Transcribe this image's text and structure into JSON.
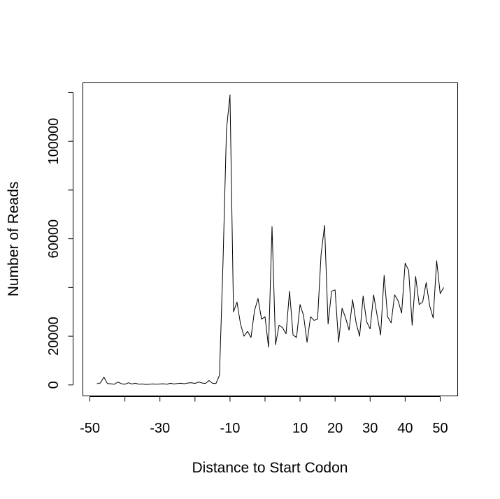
{
  "chart_data": {
    "type": "line",
    "title": "",
    "xlabel": "Distance to Start Codon",
    "ylabel": "Number of Reads",
    "xlim": [
      -52,
      55
    ],
    "ylim": [
      -4500,
      124000
    ],
    "grid": false,
    "legend": "none",
    "line_color": "#000000",
    "x_ticks": [
      -50,
      -40,
      -30,
      -20,
      -10,
      0,
      10,
      20,
      30,
      40,
      50
    ],
    "x_tick_labels": [
      {
        "value": -50,
        "label": "-50"
      },
      {
        "value": -30,
        "label": "-30"
      },
      {
        "value": -10,
        "label": "-10"
      },
      {
        "value": 10,
        "label": "10"
      },
      {
        "value": 20,
        "label": "20"
      },
      {
        "value": 30,
        "label": "30"
      },
      {
        "value": 40,
        "label": "40"
      },
      {
        "value": 50,
        "label": "50"
      }
    ],
    "y_ticks": [
      0,
      20000,
      40000,
      60000,
      80000,
      100000,
      120000
    ],
    "y_tick_labels": [
      {
        "value": 0,
        "label": "0"
      },
      {
        "value": 20000,
        "label": "20000"
      },
      {
        "value": 60000,
        "label": "60000"
      },
      {
        "value": 100000,
        "label": "100000"
      }
    ],
    "series": [
      {
        "x": [
          -48,
          -47,
          -46,
          -45,
          -44,
          -43,
          -42,
          -41,
          -40,
          -39,
          -38,
          -37,
          -36,
          -35,
          -34,
          -33,
          -32,
          -31,
          -30,
          -29,
          -28,
          -27,
          -26,
          -25,
          -24,
          -23,
          -22,
          -21,
          -20,
          -19,
          -18,
          -17,
          -16,
          -15,
          -14,
          -13,
          -12,
          -11,
          -10,
          -9,
          -8,
          -7,
          -6,
          -5,
          -4,
          -3,
          -2,
          -1,
          0,
          1,
          2,
          3,
          4,
          5,
          6,
          7,
          8,
          9,
          10,
          11,
          12,
          13,
          14,
          15,
          16,
          17,
          18,
          19,
          20,
          21,
          22,
          23,
          24,
          25,
          26,
          27,
          28,
          29,
          30,
          31,
          32,
          33,
          34,
          35,
          36,
          37,
          38,
          39,
          40,
          41,
          42,
          43,
          44,
          45,
          46,
          47,
          48,
          49,
          50,
          51
        ],
        "values": [
          500,
          800,
          3200,
          600,
          500,
          300,
          1200,
          500,
          300,
          900,
          400,
          700,
          300,
          400,
          200,
          300,
          400,
          300,
          400,
          500,
          300,
          700,
          400,
          600,
          700,
          500,
          800,
          900,
          600,
          1200,
          800,
          600,
          1800,
          700,
          600,
          4000,
          50000,
          105000,
          119000,
          30000,
          34000,
          25000,
          20000,
          22000,
          19500,
          30500,
          35500,
          27000,
          28000,
          15500,
          65000,
          16500,
          24500,
          23500,
          21000,
          38500,
          20500,
          19500,
          33000,
          28500,
          17500,
          28000,
          26500,
          27000,
          53500,
          65500,
          25000,
          38500,
          39000,
          17500,
          31500,
          27500,
          22500,
          35000,
          25500,
          20000,
          36500,
          26000,
          23000,
          37000,
          28500,
          20500,
          45000,
          28000,
          25500,
          37000,
          34500,
          29500,
          50000,
          47000,
          24500,
          44500,
          33000,
          34000,
          42000,
          32500,
          27500,
          51000,
          37500,
          40000
        ]
      }
    ]
  }
}
